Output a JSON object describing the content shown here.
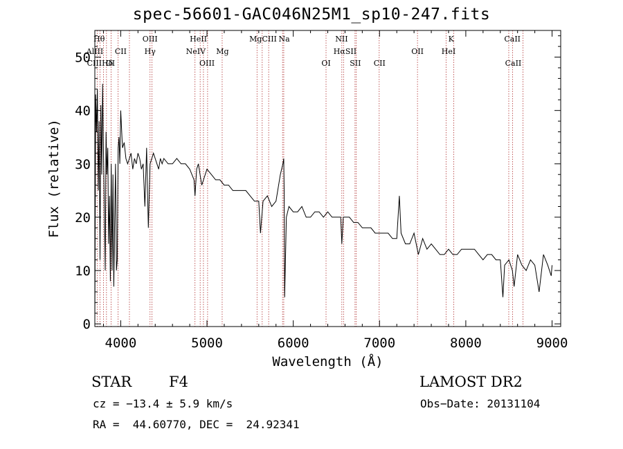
{
  "chart_data": {
    "type": "line",
    "title": "spec-56601-GAC046N25M1_sp10-247.fits",
    "xlabel": "Wavelength (Å)",
    "ylabel": "Flux (relative)",
    "xlim": [
      3700,
      9100
    ],
    "ylim": [
      -0.5,
      55
    ],
    "xticks": [
      4000,
      5000,
      6000,
      7000,
      8000,
      9000
    ],
    "yticks": [
      0,
      10,
      20,
      30,
      40,
      50
    ],
    "series": [
      {
        "x": [
          3700,
          3710,
          3720,
          3730,
          3740,
          3750,
          3760,
          3770,
          3780,
          3790,
          3800,
          3810,
          3820,
          3830,
          3840,
          3850,
          3860,
          3870,
          3880,
          3890,
          3900,
          3910,
          3920,
          3930,
          3940,
          3950,
          3960,
          3970,
          3980,
          3990,
          4000,
          4020,
          4040,
          4060,
          4080,
          4100,
          4120,
          4140,
          4160,
          4180,
          4200,
          4220,
          4240,
          4260,
          4280,
          4300,
          4320,
          4340,
          4360,
          4380,
          4400,
          4420,
          4440,
          4460,
          4480,
          4500,
          4550,
          4600,
          4650,
          4700,
          4750,
          4800,
          4850,
          4861,
          4880,
          4900,
          4920,
          4940,
          4960,
          4980,
          5000,
          5050,
          5100,
          5150,
          5200,
          5250,
          5300,
          5350,
          5400,
          5450,
          5500,
          5550,
          5600,
          5620,
          5650,
          5700,
          5750,
          5800,
          5850,
          5880,
          5890,
          5895,
          5900,
          5920,
          5950,
          6000,
          6050,
          6100,
          6150,
          6200,
          6250,
          6300,
          6350,
          6400,
          6450,
          6500,
          6550,
          6563,
          6580,
          6600,
          6650,
          6700,
          6750,
          6800,
          6850,
          6900,
          6950,
          7000,
          7050,
          7100,
          7150,
          7200,
          7230,
          7250,
          7300,
          7350,
          7400,
          7450,
          7500,
          7550,
          7600,
          7650,
          7700,
          7750,
          7800,
          7850,
          7900,
          7950,
          8000,
          8050,
          8100,
          8150,
          8200,
          8250,
          8300,
          8350,
          8400,
          8430,
          8450,
          8500,
          8540,
          8560,
          8600,
          8650,
          8700,
          8750,
          8800,
          8850,
          8900,
          8950,
          8990,
          9000
        ],
        "y": [
          0,
          43,
          36,
          44,
          25,
          38,
          12,
          41,
          28,
          45,
          32,
          22,
          10,
          36,
          28,
          33,
          15,
          24,
          8,
          30,
          10,
          28,
          7,
          20,
          30,
          10,
          12,
          33,
          35,
          30,
          40,
          33,
          34,
          31,
          30,
          31,
          32,
          29,
          31,
          30,
          32,
          31,
          29,
          30,
          22,
          33,
          18,
          30,
          31,
          32,
          31,
          30,
          29,
          31,
          30,
          31,
          30,
          30,
          31,
          30,
          30,
          29,
          27,
          24,
          29,
          30,
          28,
          26,
          27,
          28,
          29,
          28,
          27,
          27,
          26,
          26,
          25,
          25,
          25,
          25,
          24,
          23,
          23,
          17,
          23,
          24,
          22,
          23,
          28,
          30,
          31,
          24,
          5,
          20,
          22,
          21,
          21,
          22,
          20,
          20,
          21,
          21,
          20,
          21,
          20,
          20,
          20,
          15,
          20,
          20,
          20,
          19,
          19,
          18,
          18,
          18,
          17,
          17,
          17,
          17,
          16,
          16,
          24,
          17,
          15,
          15,
          17,
          13,
          16,
          14,
          15,
          14,
          13,
          13,
          14,
          13,
          13,
          14,
          14,
          14,
          14,
          13,
          12,
          13,
          13,
          12,
          12,
          5,
          11,
          12,
          10,
          7,
          13,
          11,
          10,
          12,
          11,
          6,
          13,
          11,
          9,
          11
        ]
      }
    ],
    "line_labels_top": [
      {
        "x": 3750,
        "label": "Hθ"
      },
      {
        "x": 4340,
        "label": "OIII"
      },
      {
        "x": 4900,
        "label": "HeII"
      },
      {
        "x": 5650,
        "label": "MgCIII"
      },
      {
        "x": 5895,
        "label": "Na"
      },
      {
        "x": 6560,
        "label": "NII"
      },
      {
        "x": 7830,
        "label": "K"
      },
      {
        "x": 8540,
        "label": "CaII"
      }
    ],
    "line_labels_mid": [
      {
        "x": 3700,
        "label": "AlIII"
      },
      {
        "x": 4000,
        "label": "CII"
      },
      {
        "x": 4340,
        "label": "Hγ"
      },
      {
        "x": 4870,
        "label": "NeIV"
      },
      {
        "x": 5180,
        "label": "Mg"
      },
      {
        "x": 6600,
        "label": "HαSII"
      },
      {
        "x": 7440,
        "label": "OII"
      },
      {
        "x": 7800,
        "label": "HeI"
      }
    ],
    "line_labels_low": [
      {
        "x": 3760,
        "label": "CIIIHδ"
      },
      {
        "x": 3880,
        "label": "OI"
      },
      {
        "x": 5000,
        "label": "OIII"
      },
      {
        "x": 6380,
        "label": "OI"
      },
      {
        "x": 6720,
        "label": "SII"
      },
      {
        "x": 7000,
        "label": "CII"
      },
      {
        "x": 8550,
        "label": "CaII"
      }
    ],
    "line_positions": [
      3727,
      3760,
      3800,
      3835,
      3889,
      3970,
      4101,
      4340,
      4363,
      4861,
      4921,
      4959,
      5007,
      5176,
      5580,
      5640,
      5715,
      5876,
      5890,
      6380,
      6563,
      6583,
      6716,
      6731,
      6996,
      7440,
      7771,
      7860,
      8498,
      8542,
      8662
    ]
  },
  "info": {
    "class": "STAR",
    "subclass": "F4",
    "survey": "LAMOST DR2",
    "redshift": "cz = −13.4 ± 5.9 km/s",
    "obs_date": "Obs−Date: 20131104",
    "coords": "RA =  44.60770, DEC =  24.92341"
  }
}
